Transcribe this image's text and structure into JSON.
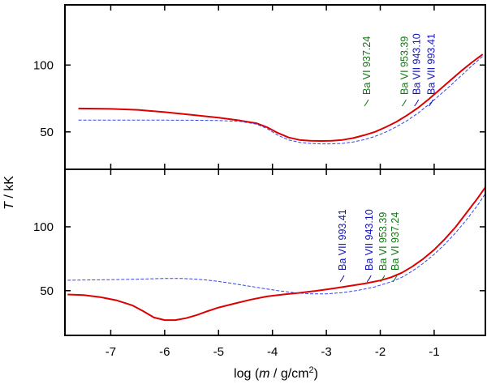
{
  "chart_data": {
    "type": "line",
    "xlabel": {
      "prefix": "log (",
      "var": "m",
      "mid": " / g/cm",
      "sup": "2",
      "suffix": ")"
    },
    "ylabel": {
      "var": "T",
      "suffix": " / kK"
    },
    "xlim": [
      -7.85,
      -0.05
    ],
    "xticks": [
      -7,
      -6,
      -5,
      -4,
      -3,
      -2,
      -1
    ],
    "colors": {
      "red": "#dd0000",
      "blue": "#3344ee",
      "green": "#117711",
      "labelBlue": "#1111bb"
    },
    "panels": [
      {
        "name": "top",
        "ylim": [
          22,
          145
        ],
        "yticks": [
          50,
          100
        ],
        "series": [
          {
            "name": "red solid",
            "style": "solid",
            "color": "#dd0000",
            "x": [
              -7.6,
              -7.0,
              -6.5,
              -6.0,
              -5.5,
              -5.0,
              -4.6,
              -4.3,
              -4.1,
              -3.9,
              -3.7,
              -3.5,
              -3.3,
              -3.1,
              -2.9,
              -2.7,
              -2.5,
              -2.3,
              -2.1,
              -1.9,
              -1.7,
              -1.5,
              -1.3,
              -1.1,
              -0.9,
              -0.7,
              -0.5,
              -0.3,
              -0.1
            ],
            "y": [
              67.5,
              67.2,
              66.5,
              64.8,
              62.8,
              60.6,
              58.5,
              56.5,
              53.5,
              49.2,
              45.8,
              44.0,
              43.3,
              43.2,
              43.3,
              44.0,
              45.4,
              47.5,
              50.0,
              53.5,
              57.5,
              62.5,
              68.0,
              74.5,
              81.5,
              88.5,
              95.5,
              102.0,
              108.0
            ]
          },
          {
            "name": "blue dashed",
            "style": "dashed",
            "color": "#3344ee",
            "x": [
              -7.6,
              -7.0,
              -6.5,
              -6.0,
              -5.5,
              -5.0,
              -4.6,
              -4.3,
              -4.1,
              -3.9,
              -3.7,
              -3.5,
              -3.3,
              -3.1,
              -2.9,
              -2.7,
              -2.5,
              -2.3,
              -2.1,
              -1.9,
              -1.7,
              -1.5,
              -1.3,
              -1.1,
              -0.9,
              -0.7,
              -0.5,
              -0.3,
              -0.1
            ],
            "y": [
              58.8,
              58.8,
              58.8,
              58.8,
              58.7,
              58.5,
              57.8,
              55.8,
              52.5,
              47.5,
              44.0,
              42.2,
              41.3,
              41.0,
              41.0,
              41.4,
              42.5,
              44.2,
              46.6,
              49.8,
              53.8,
              58.5,
              64.0,
              70.5,
              77.5,
              84.5,
              92.0,
              99.5,
              106.5
            ]
          }
        ],
        "line_labels": [
          {
            "text": "Ba VI  937.24",
            "x": -2.25,
            "color": "#117711"
          },
          {
            "text": "Ba VI  953.39",
            "x": -1.55,
            "color": "#117711"
          },
          {
            "text": "Ba VII 943.10",
            "x": -1.32,
            "color": "#1111bb"
          },
          {
            "text": "Ba VII 993.41",
            "x": -1.05,
            "color": "#1111bb"
          }
        ]
      },
      {
        "name": "bottom",
        "ylim": [
          15,
          145
        ],
        "yticks": [
          50,
          100
        ],
        "series": [
          {
            "name": "red solid",
            "style": "solid",
            "color": "#dd0000",
            "x": [
              -7.8,
              -7.5,
              -7.2,
              -6.9,
              -6.6,
              -6.4,
              -6.2,
              -6.0,
              -5.8,
              -5.6,
              -5.4,
              -5.2,
              -5.0,
              -4.7,
              -4.4,
              -4.1,
              -3.8,
              -3.5,
              -3.2,
              -2.9,
              -2.6,
              -2.3,
              -2.0,
              -1.8,
              -1.6,
              -1.4,
              -1.2,
              -1.0,
              -0.8,
              -0.6,
              -0.4,
              -0.2,
              -0.05
            ],
            "y": [
              47.0,
              46.5,
              45.0,
              42.5,
              38.5,
              34.0,
              29.0,
              27.0,
              27.0,
              28.5,
              31.0,
              34.0,
              36.8,
              40.0,
              43.0,
              45.5,
              47.0,
              48.3,
              49.8,
              51.5,
              53.5,
              55.5,
              58.0,
              60.5,
              64.0,
              69.0,
              75.0,
              82.0,
              90.5,
              100.0,
              111.0,
              122.0,
              131.0
            ]
          },
          {
            "name": "blue dashed",
            "style": "dashed",
            "color": "#3344ee",
            "x": [
              -7.8,
              -7.0,
              -6.5,
              -6.0,
              -5.7,
              -5.4,
              -5.1,
              -4.8,
              -4.5,
              -4.2,
              -3.9,
              -3.6,
              -3.3,
              -3.0,
              -2.7,
              -2.4,
              -2.1,
              -1.8,
              -1.6,
              -1.4,
              -1.2,
              -1.0,
              -0.8,
              -0.6,
              -0.4,
              -0.2,
              -0.05
            ],
            "y": [
              58.2,
              58.6,
              59.0,
              59.6,
              59.6,
              59.0,
              57.8,
              56.0,
              54.0,
              52.0,
              50.0,
              48.5,
              47.5,
              47.5,
              48.5,
              50.3,
              53.0,
              57.0,
              60.5,
              65.5,
              71.5,
              78.5,
              86.5,
              95.5,
              105.5,
              116.5,
              126.0
            ]
          }
        ],
        "line_labels": [
          {
            "text": "Ba VII 993.41",
            "x": -2.7,
            "color": "#1111bb"
          },
          {
            "text": "Ba VII 943.10",
            "x": -2.2,
            "color": "#1111bb"
          },
          {
            "text": "Ba VI  953.39",
            "x": -1.95,
            "color": "#117711"
          },
          {
            "text": "Ba VI  937.24",
            "x": -1.72,
            "color": "#117711"
          }
        ]
      }
    ]
  }
}
